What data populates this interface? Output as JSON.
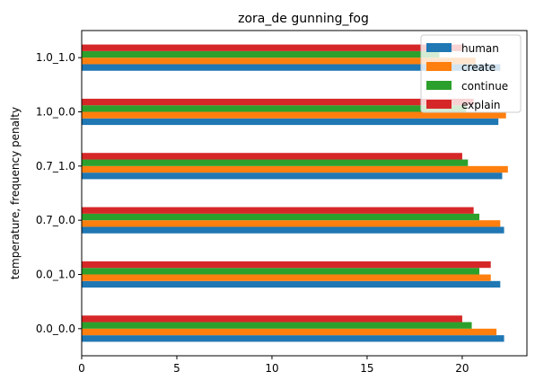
{
  "chart_data": {
    "type": "bar",
    "orientation": "horizontal",
    "title": "zora_de gunning_fog",
    "xlabel": "",
    "ylabel": "temperature, frequency penalty",
    "categories": [
      "0.0_0.0",
      "0.0_1.0",
      "0.7_0.0",
      "0.7_1.0",
      "1.0_0.0",
      "1.0_1.0"
    ],
    "series": [
      {
        "name": "human",
        "color": "#1f77b4",
        "values": [
          22.2,
          22.0,
          22.2,
          22.1,
          21.9,
          22.0
        ]
      },
      {
        "name": "create",
        "color": "#ff7f0e",
        "values": [
          21.8,
          21.5,
          22.0,
          22.4,
          22.3,
          20.7
        ]
      },
      {
        "name": "continue",
        "color": "#2ca02c",
        "values": [
          20.5,
          20.9,
          20.9,
          20.3,
          20.2,
          18.8
        ]
      },
      {
        "name": "explain",
        "color": "#d62728",
        "values": [
          20.0,
          21.5,
          20.6,
          20.0,
          20.6,
          20.0
        ]
      }
    ],
    "xticks": [
      0,
      5,
      10,
      15,
      20
    ],
    "xlim": [
      0,
      23.4
    ],
    "grid": false,
    "legend_position": "upper right"
  }
}
